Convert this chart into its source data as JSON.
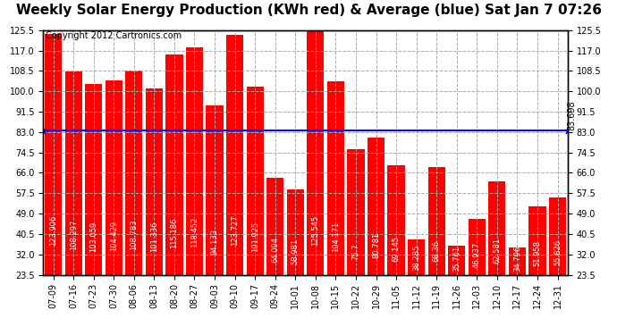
{
  "title": "Weekly Solar Energy Production (KWh red) & Average (blue) Sat Jan 7 07:26",
  "copyright": "Copyright 2012 Cartronics.com",
  "categories": [
    "07-09",
    "07-16",
    "07-23",
    "07-30",
    "08-06",
    "08-13",
    "08-20",
    "08-27",
    "09-03",
    "09-10",
    "09-17",
    "09-24",
    "10-01",
    "10-08",
    "10-15",
    "10-22",
    "10-29",
    "11-05",
    "11-12",
    "11-19",
    "11-26",
    "12-03",
    "12-10",
    "12-17",
    "12-24",
    "12-31"
  ],
  "values": [
    123.906,
    108.297,
    103.059,
    104.429,
    108.783,
    101.336,
    115.186,
    118.452,
    94.133,
    123.727,
    101.925,
    64.094,
    58.981,
    125.545,
    104.171,
    75.7,
    80.781,
    69.145,
    38.285,
    68.36,
    35.761,
    46.937,
    62.581,
    34.796,
    51.958,
    55.826
  ],
  "average": 83.698,
  "bar_color": "#ff0000",
  "avg_line_color": "#0000ff",
  "background_color": "#ffffff",
  "plot_bg_color": "#ffffff",
  "grid_color": "#aaaaaa",
  "title_fontsize": 11,
  "copyright_fontsize": 7,
  "bar_label_fontsize": 6,
  "tick_fontsize": 7,
  "ylim": [
    23.5,
    125.5
  ],
  "yticks": [
    23.5,
    32.0,
    40.5,
    49.0,
    57.5,
    66.0,
    74.5,
    83.0,
    91.5,
    100.0,
    108.5,
    117.0,
    125.5
  ],
  "avg_label": "83.698"
}
